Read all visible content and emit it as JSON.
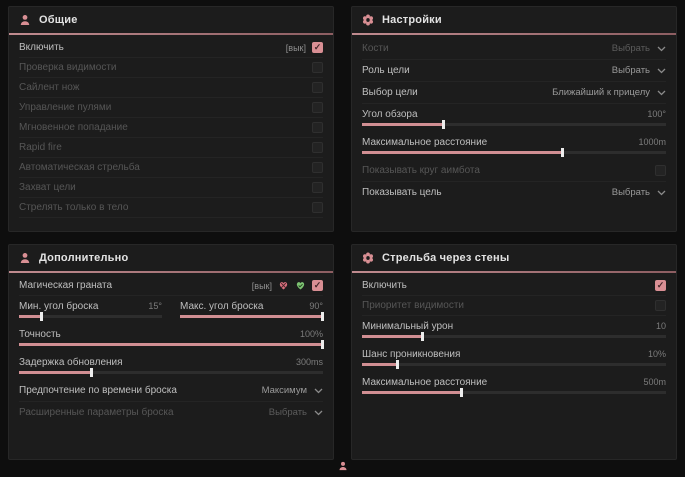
{
  "accent": "#d18f93",
  "icons": {
    "general": "person-icon",
    "settings": "gear-icon",
    "additional": "person-icon",
    "wallbang": "gear-icon",
    "footer": "person-icon",
    "grenade_off": "heart-broken-icon",
    "grenade_on": "heart-icon"
  },
  "general": {
    "title": "Общие",
    "rows": [
      {
        "label": "Включить",
        "suffix": "[вык]",
        "checked": true
      },
      {
        "label": "Проверка видимости",
        "checked": false
      },
      {
        "label": "Сайлент нож",
        "checked": false
      },
      {
        "label": "Управление пулями",
        "checked": false
      },
      {
        "label": "Мгновенное попадание",
        "checked": false
      },
      {
        "label": "Rapid fire",
        "checked": false
      },
      {
        "label": "Автоматическая стрельба",
        "checked": false
      },
      {
        "label": "Захват цели",
        "checked": false
      },
      {
        "label": "Стрелять только в тело",
        "checked": false
      }
    ]
  },
  "settings": {
    "title": "Настройки",
    "bones": {
      "label": "Кости",
      "value": "Выбрать"
    },
    "target_role": {
      "label": "Роль цели",
      "value": "Выбрать"
    },
    "target_select": {
      "label": "Выбор цели",
      "value": "Ближайший к прицелу"
    },
    "fov": {
      "label": "Угол обзора",
      "value": "100°",
      "percent": 27
    },
    "max_distance": {
      "label": "Максимальное расстояние",
      "value": "1000m",
      "percent": 66
    },
    "show_circle": {
      "label": "Показывать круг аимбота",
      "checked": false
    },
    "show_target": {
      "label": "Показывать цель",
      "value": "Выбрать"
    }
  },
  "additional": {
    "title": "Дополнительно",
    "magic_grenade": {
      "label": "Магическая граната",
      "suffix": "[вык]",
      "checked": true
    },
    "min_angle": {
      "label": "Мин. угол броска",
      "value": "15°",
      "percent": 16
    },
    "max_angle": {
      "label": "Макс. угол броска",
      "value": "90°",
      "percent": 100
    },
    "accuracy": {
      "label": "Точность",
      "value": "100%",
      "percent": 100
    },
    "update_delay": {
      "label": "Задержка обновления",
      "value": "300ms",
      "percent": 24
    },
    "throw_time": {
      "label": "Предпочтение по времени броска",
      "value": "Максимум"
    },
    "advanced": {
      "label": "Расширенные параметры броска",
      "value": "Выбрать"
    }
  },
  "wallbang": {
    "title": "Стрельба через стены",
    "enable": {
      "label": "Включить",
      "checked": true
    },
    "visibility_priority": {
      "label": "Приоритет видимости",
      "checked": false
    },
    "min_damage": {
      "label": "Минимальный урон",
      "value": "10",
      "percent": 20
    },
    "penetration_chance": {
      "label": "Шанс проникновения",
      "value": "10%",
      "percent": 12
    },
    "max_distance": {
      "label": "Максимальное расстояние",
      "value": "500m",
      "percent": 33
    }
  }
}
